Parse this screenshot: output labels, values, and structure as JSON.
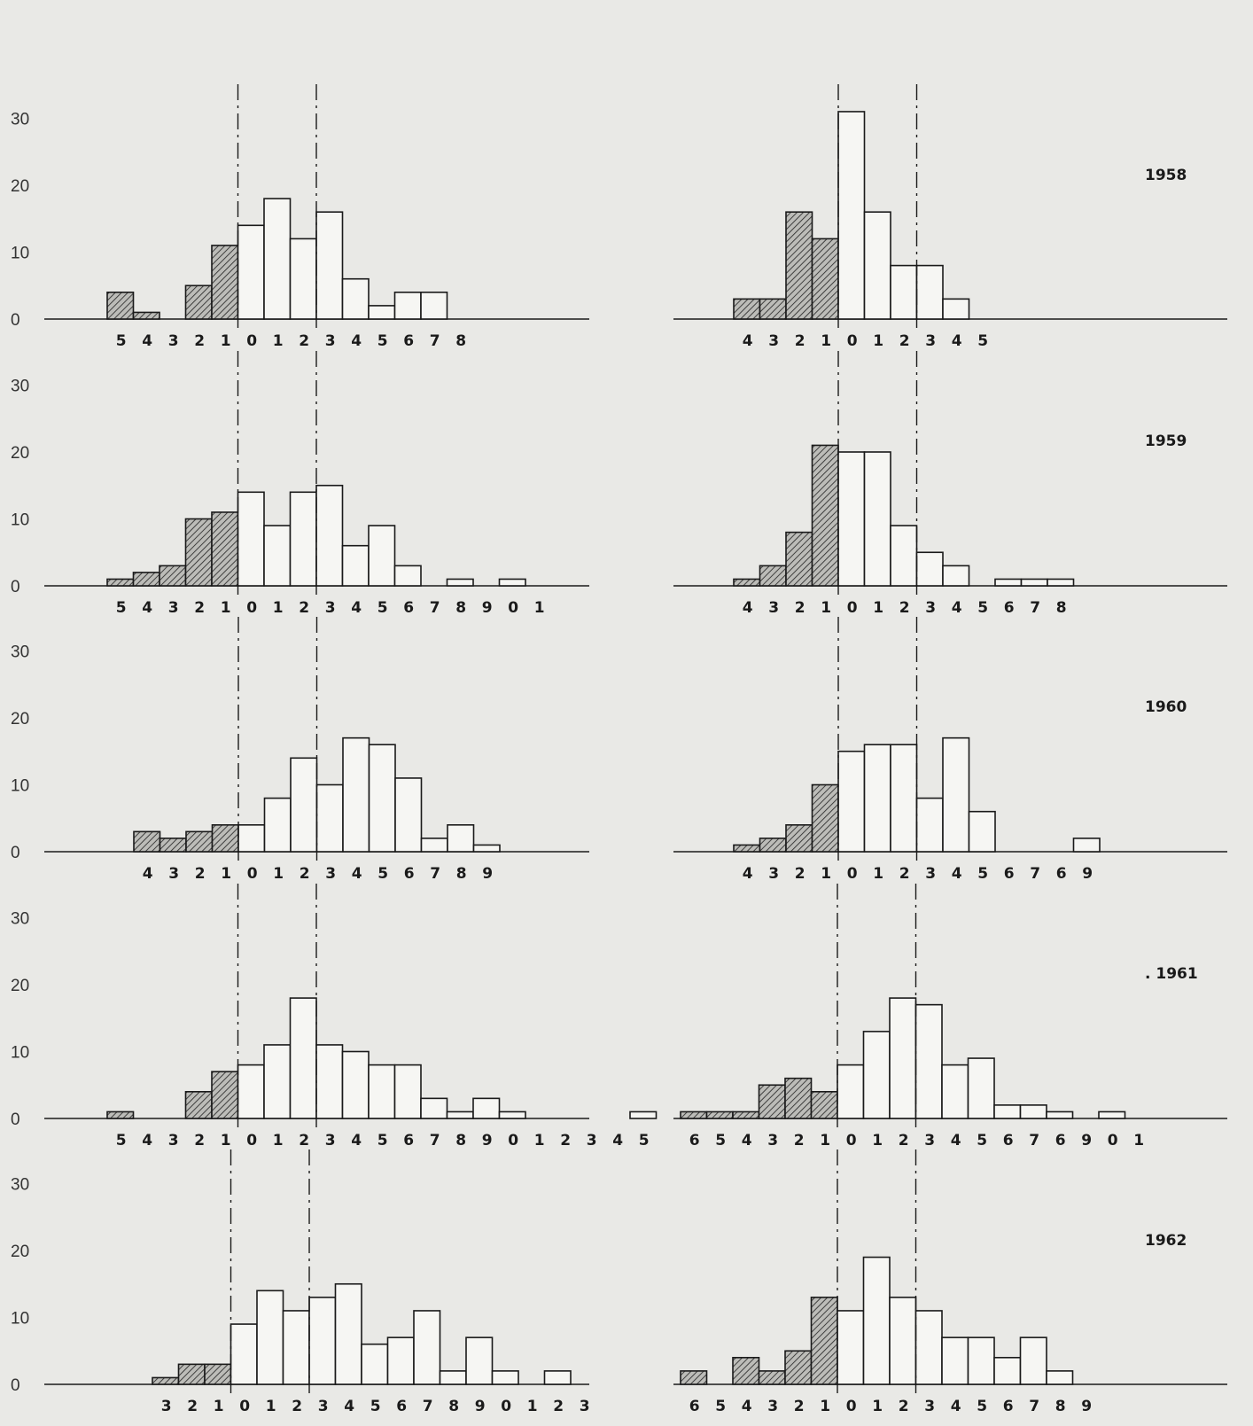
{
  "chart_data": [
    {
      "type": "bar",
      "year": "",
      "y_ticks": [
        "30",
        "20",
        "10",
        "0"
      ],
      "ylim": [
        0,
        30
      ],
      "tick_labels": [
        "5",
        "4",
        "3",
        "2",
        "1",
        "0",
        "1",
        "2",
        "3",
        "4",
        "5",
        "6",
        "7",
        "8"
      ],
      "hatched": [
        4,
        1,
        0,
        5,
        11
      ],
      "open": [
        14,
        18,
        12,
        16,
        6,
        2,
        4,
        4
      ]
    },
    {
      "type": "bar",
      "year": "1958",
      "y_ticks": [],
      "ylim": [
        0,
        30
      ],
      "tick_labels": [
        "4",
        "3",
        "2",
        "1",
        "0",
        "1",
        "2",
        "3",
        "4",
        "5"
      ],
      "hatched": [
        3,
        3,
        16,
        12
      ],
      "open": [
        31,
        16,
        8,
        8,
        3
      ]
    },
    {
      "type": "bar",
      "year": "",
      "y_ticks": [
        "30",
        "20",
        "10",
        "0"
      ],
      "ylim": [
        0,
        30
      ],
      "tick_labels": [
        "5",
        "4",
        "3",
        "2",
        "1",
        "0",
        "1",
        "2",
        "3",
        "4",
        "5",
        "6",
        "7",
        "8",
        "9",
        "0",
        "1"
      ],
      "hatched": [
        1,
        2,
        3,
        10,
        11
      ],
      "open": [
        14,
        9,
        14,
        15,
        6,
        9,
        3,
        0,
        1,
        0,
        1
      ]
    },
    {
      "type": "bar",
      "year": "1959",
      "y_ticks": [],
      "ylim": [
        0,
        30
      ],
      "tick_labels": [
        "4",
        "3",
        "2",
        "1",
        "0",
        "1",
        "2",
        "3",
        "4",
        "5",
        "6",
        "7",
        "8"
      ],
      "hatched": [
        1,
        3,
        8,
        21
      ],
      "open": [
        20,
        20,
        9,
        5,
        3,
        0,
        1,
        1,
        1
      ]
    },
    {
      "type": "bar",
      "year": "",
      "y_ticks": [
        "30",
        "20",
        "10",
        "0"
      ],
      "ylim": [
        0,
        30
      ],
      "tick_labels": [
        "4",
        "3",
        "2",
        "1",
        "0",
        "1",
        "2",
        "3",
        "4",
        "5",
        "6",
        "7",
        "8",
        "9"
      ],
      "hatched": [
        3,
        2,
        3,
        4
      ],
      "open": [
        4,
        8,
        14,
        10,
        17,
        16,
        11,
        2,
        4,
        1
      ]
    },
    {
      "type": "bar",
      "year": "1960",
      "y_ticks": [],
      "ylim": [
        0,
        30
      ],
      "tick_labels": [
        "4",
        "3",
        "2",
        "1",
        "0",
        "1",
        "2",
        "3",
        "4",
        "5",
        "6",
        "7",
        "6",
        "9"
      ],
      "hatched": [
        1,
        2,
        4,
        10
      ],
      "open": [
        15,
        16,
        16,
        8,
        17,
        6,
        0,
        0,
        0,
        2
      ]
    },
    {
      "type": "bar",
      "year": "",
      "y_ticks": [
        "30",
        "20",
        "10",
        "0"
      ],
      "ylim": [
        0,
        30
      ],
      "tick_labels": [
        "5",
        "4",
        "3",
        "2",
        "1",
        "0",
        "1",
        "2",
        "3",
        "4",
        "5",
        "6",
        "7",
        "8",
        "9",
        "0",
        "1",
        "2",
        "3",
        "4",
        "5"
      ],
      "hatched": [
        1,
        0,
        0,
        4,
        7
      ],
      "open": [
        8,
        11,
        18,
        11,
        10,
        8,
        8,
        3,
        1,
        3,
        1,
        0,
        0,
        0,
        0,
        1
      ]
    },
    {
      "type": "bar",
      "year": ". 1961",
      "y_ticks": [],
      "ylim": [
        0,
        30
      ],
      "tick_labels": [
        "6",
        "5",
        "4",
        "3",
        "2",
        "1",
        "0",
        "1",
        "2",
        "3",
        "4",
        "5",
        "6",
        "7",
        "6",
        "9",
        "0",
        "1"
      ],
      "hatched": [
        1,
        1,
        1,
        5,
        6,
        4
      ],
      "open": [
        8,
        13,
        18,
        17,
        8,
        9,
        2,
        2,
        1,
        0,
        1
      ]
    },
    {
      "type": "bar",
      "year": "",
      "y_ticks": [
        "30",
        "20",
        "10",
        "0"
      ],
      "ylim": [
        0,
        30
      ],
      "tick_labels": [
        "3",
        "2",
        "1",
        "0",
        "1",
        "2",
        "3",
        "4",
        "5",
        "6",
        "7",
        "8",
        "9",
        "0",
        "1",
        "2",
        "3"
      ],
      "hatched": [
        1,
        3,
        3
      ],
      "open": [
        9,
        14,
        11,
        13,
        15,
        6,
        7,
        11,
        2,
        7,
        2,
        0,
        2
      ]
    },
    {
      "type": "bar",
      "year": "1962",
      "y_ticks": [],
      "ylim": [
        0,
        30
      ],
      "tick_labels": [
        "6",
        "5",
        "4",
        "3",
        "2",
        "1",
        "0",
        "1",
        "2",
        "3",
        "4",
        "5",
        "6",
        "7",
        "8",
        "9"
      ],
      "hatched": [
        2,
        0,
        4,
        2,
        5,
        13
      ],
      "open": [
        11,
        19,
        13,
        11,
        7,
        7,
        4,
        7,
        2
      ]
    }
  ]
}
